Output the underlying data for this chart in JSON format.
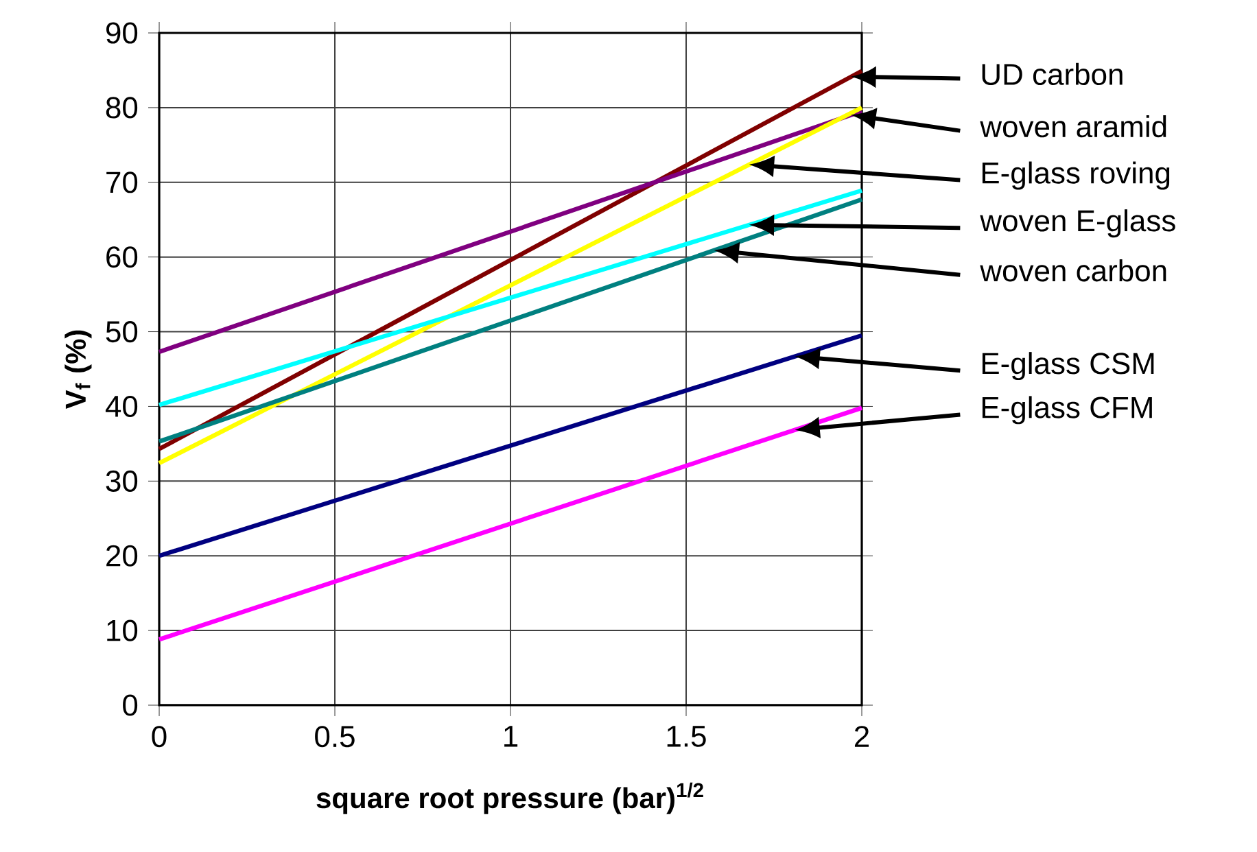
{
  "chart_data": {
    "type": "line",
    "xlabel": "square root pressure (bar)$^{1/2}$",
    "ylabel": "V$_{f}$ (%)",
    "x": [
      0,
      2
    ],
    "xlim": [
      0,
      2
    ],
    "ylim": [
      0,
      90
    ],
    "xticks": [
      0,
      0.5,
      1,
      1.5,
      2
    ],
    "yticks": [
      0,
      10,
      20,
      30,
      40,
      50,
      60,
      70,
      80,
      90
    ],
    "grid": true,
    "marker": "none",
    "line_style": "solid",
    "series": [
      {
        "name": "UD carbon",
        "color": "#800000",
        "values": [
          34.3,
          84.9
        ]
      },
      {
        "name": "woven aramid",
        "color": "#800080",
        "values": [
          47.3,
          79.5
        ]
      },
      {
        "name": "E-glass roving",
        "color": "#ffff00",
        "values": [
          32.4,
          80
        ]
      },
      {
        "name": "woven E-glass",
        "color": "#00ffff",
        "values": [
          40.2,
          68.9
        ]
      },
      {
        "name": "woven carbon",
        "color": "#008080",
        "values": [
          35.3,
          67.7
        ]
      },
      {
        "name": "E-glass CSM",
        "color": "#000080",
        "values": [
          20.0,
          49.5
        ]
      },
      {
        "name": "E-glass CFM",
        "color": "#ff00ff",
        "values": [
          8.8,
          39.8
        ]
      }
    ]
  }
}
